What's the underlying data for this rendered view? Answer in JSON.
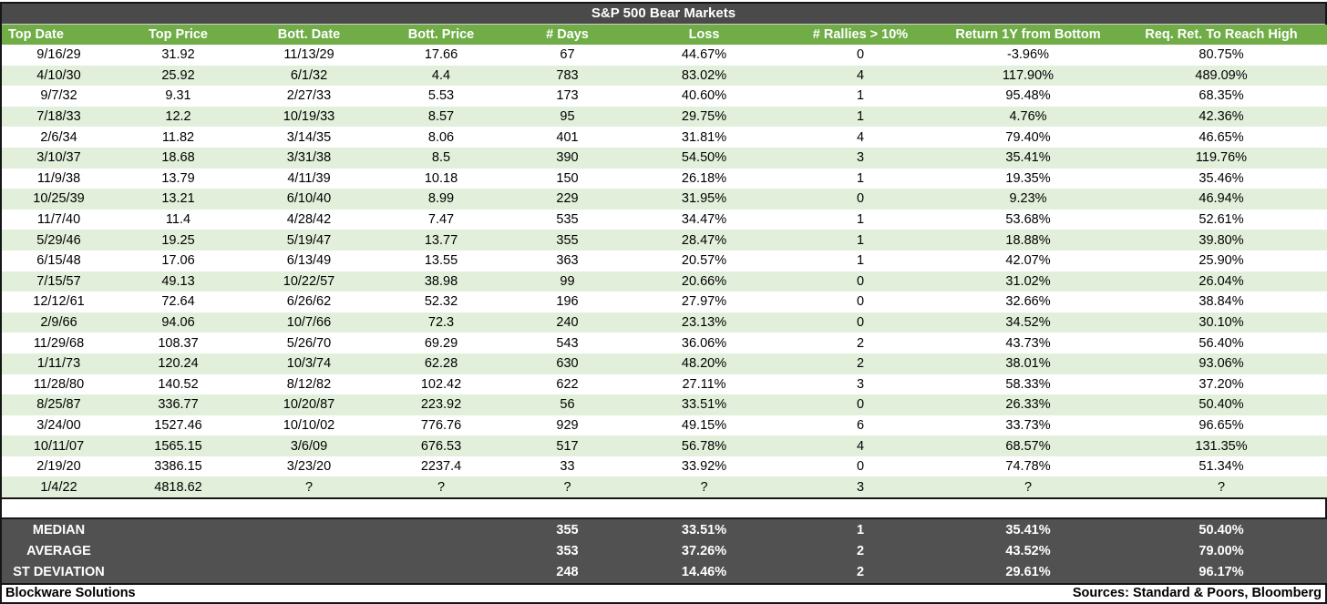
{
  "title": "S&P 500 Bear Markets",
  "footer": {
    "left": "Blockware Solutions",
    "right": "Sources: Standard & Poors, Bloomberg"
  },
  "colors": {
    "title_bar_background": "#4a4a4a",
    "header_green": "#70ad47",
    "alt_row_green": "#e2efda",
    "summary_background": "#515151",
    "border_black": "#161616",
    "text_white": "#ffffff",
    "text_black": "#000000"
  },
  "chart_data": {
    "type": "table",
    "title": "S&P 500 Bear Markets",
    "columns": [
      "Top Date",
      "Top Price",
      "Bott. Date",
      "Bott. Price",
      "# Days",
      "Loss",
      "# Rallies > 10%",
      "Return 1Y from Bottom",
      "Req. Ret. To Reach High"
    ],
    "rows": [
      [
        "9/16/29",
        "31.92",
        "11/13/29",
        "17.66",
        "67",
        "44.67%",
        "0",
        "-3.96%",
        "80.75%"
      ],
      [
        "4/10/30",
        "25.92",
        "6/1/32",
        "4.4",
        "783",
        "83.02%",
        "4",
        "117.90%",
        "489.09%"
      ],
      [
        "9/7/32",
        "9.31",
        "2/27/33",
        "5.53",
        "173",
        "40.60%",
        "1",
        "95.48%",
        "68.35%"
      ],
      [
        "7/18/33",
        "12.2",
        "10/19/33",
        "8.57",
        "95",
        "29.75%",
        "1",
        "4.76%",
        "42.36%"
      ],
      [
        "2/6/34",
        "11.82",
        "3/14/35",
        "8.06",
        "401",
        "31.81%",
        "4",
        "79.40%",
        "46.65%"
      ],
      [
        "3/10/37",
        "18.68",
        "3/31/38",
        "8.5",
        "390",
        "54.50%",
        "3",
        "35.41%",
        "119.76%"
      ],
      [
        "11/9/38",
        "13.79",
        "4/11/39",
        "10.18",
        "150",
        "26.18%",
        "1",
        "19.35%",
        "35.46%"
      ],
      [
        "10/25/39",
        "13.21",
        "6/10/40",
        "8.99",
        "229",
        "31.95%",
        "0",
        "9.23%",
        "46.94%"
      ],
      [
        "11/7/40",
        "11.4",
        "4/28/42",
        "7.47",
        "535",
        "34.47%",
        "1",
        "53.68%",
        "52.61%"
      ],
      [
        "5/29/46",
        "19.25",
        "5/19/47",
        "13.77",
        "355",
        "28.47%",
        "1",
        "18.88%",
        "39.80%"
      ],
      [
        "6/15/48",
        "17.06",
        "6/13/49",
        "13.55",
        "363",
        "20.57%",
        "1",
        "42.07%",
        "25.90%"
      ],
      [
        "7/15/57",
        "49.13",
        "10/22/57",
        "38.98",
        "99",
        "20.66%",
        "0",
        "31.02%",
        "26.04%"
      ],
      [
        "12/12/61",
        "72.64",
        "6/26/62",
        "52.32",
        "196",
        "27.97%",
        "0",
        "32.66%",
        "38.84%"
      ],
      [
        "2/9/66",
        "94.06",
        "10/7/66",
        "72.3",
        "240",
        "23.13%",
        "0",
        "34.52%",
        "30.10%"
      ],
      [
        "11/29/68",
        "108.37",
        "5/26/70",
        "69.29",
        "543",
        "36.06%",
        "2",
        "43.73%",
        "56.40%"
      ],
      [
        "1/11/73",
        "120.24",
        "10/3/74",
        "62.28",
        "630",
        "48.20%",
        "2",
        "38.01%",
        "93.06%"
      ],
      [
        "11/28/80",
        "140.52",
        "8/12/82",
        "102.42",
        "622",
        "27.11%",
        "3",
        "58.33%",
        "37.20%"
      ],
      [
        "8/25/87",
        "336.77",
        "10/20/87",
        "223.92",
        "56",
        "33.51%",
        "0",
        "26.33%",
        "50.40%"
      ],
      [
        "3/24/00",
        "1527.46",
        "10/10/02",
        "776.76",
        "929",
        "49.15%",
        "6",
        "33.73%",
        "96.65%"
      ],
      [
        "10/11/07",
        "1565.15",
        "3/6/09",
        "676.53",
        "517",
        "56.78%",
        "4",
        "68.57%",
        "131.35%"
      ],
      [
        "2/19/20",
        "3386.15",
        "3/23/20",
        "2237.4",
        "33",
        "33.92%",
        "0",
        "74.78%",
        "51.34%"
      ],
      [
        "1/4/22",
        "4818.62",
        "?",
        "?",
        "?",
        "?",
        "3",
        "?",
        "?"
      ]
    ],
    "summary_rows": [
      [
        "MEDIAN",
        "",
        "",
        "",
        "355",
        "33.51%",
        "1",
        "35.41%",
        "50.40%"
      ],
      [
        "AVERAGE",
        "",
        "",
        "",
        "353",
        "37.26%",
        "2",
        "43.52%",
        "79.00%"
      ],
      [
        "ST DEVIATION",
        "",
        "",
        "",
        "248",
        "14.46%",
        "2",
        "29.61%",
        "96.17%"
      ]
    ]
  }
}
